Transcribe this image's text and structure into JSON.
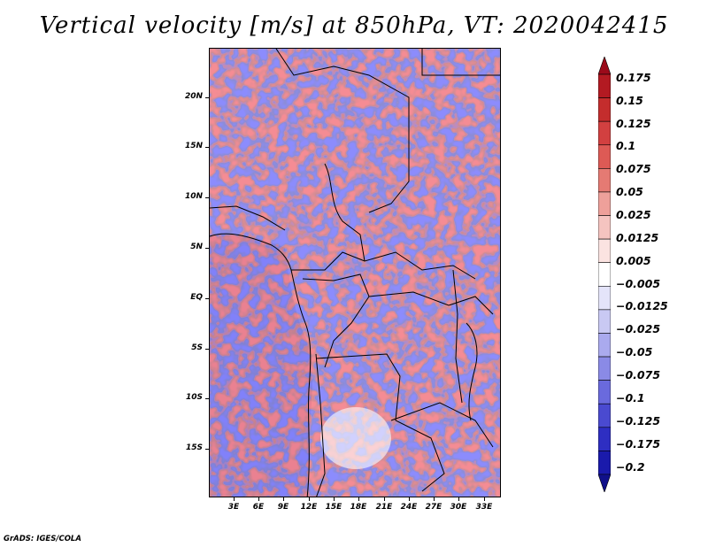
{
  "title": "Vertical velocity [m/s] at 850hPa, VT: 2020042415",
  "map": {
    "lat_labels": [
      "20N",
      "15N",
      "10N",
      "5N",
      "EQ",
      "5S",
      "10S",
      "15S"
    ],
    "lon_labels": [
      "3E",
      "6E",
      "9E",
      "12E",
      "15E",
      "18E",
      "21E",
      "24E",
      "27E",
      "30E",
      "33E"
    ]
  },
  "colorbar": {
    "labels": [
      "0.175",
      "0.15",
      "0.125",
      "0.1",
      "0.075",
      "0.05",
      "0.025",
      "0.0125",
      "0.005",
      "−0.005",
      "−0.0125",
      "−0.025",
      "−0.05",
      "−0.075",
      "−0.1",
      "−0.125",
      "−0.175",
      "−0.2"
    ],
    "colors": [
      "#9b0a1a",
      "#b31a22",
      "#c42d2d",
      "#d24040",
      "#dd5a55",
      "#e57a73",
      "#eea09a",
      "#f5c4c0",
      "#fbe3e1",
      "#ffffff",
      "#e4e4fa",
      "#c9c9f3",
      "#aaaaee",
      "#8a8ae6",
      "#6a6add",
      "#4a4ad0",
      "#2e2ec2",
      "#1a1aab",
      "#10108a"
    ]
  },
  "footer": "GrADS: IGES/COLA"
}
